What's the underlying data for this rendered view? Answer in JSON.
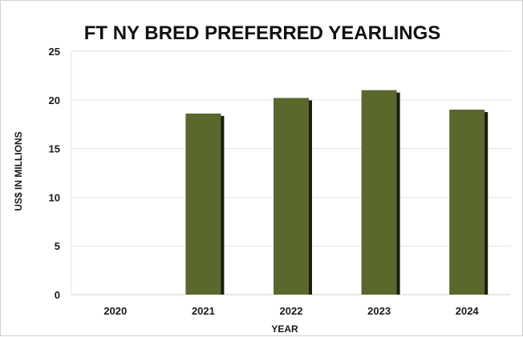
{
  "chart_data": {
    "type": "bar",
    "title": "FT NY BRED PREFERRED YEARLINGS",
    "xlabel": "YEAR",
    "ylabel": "US$ IN MILLIONS",
    "categories": [
      "2020",
      "2021",
      "2022",
      "2023",
      "2024"
    ],
    "values": [
      0,
      18.6,
      20.2,
      21.0,
      19.0
    ],
    "ylim": [
      0,
      25
    ],
    "yticks": [
      0,
      5,
      10,
      15,
      20,
      25
    ],
    "grid": true,
    "legend": "none",
    "colors": {
      "bar": "#5a672d",
      "shadow": "#1c1c10",
      "grid": "#e3e3e3"
    }
  }
}
